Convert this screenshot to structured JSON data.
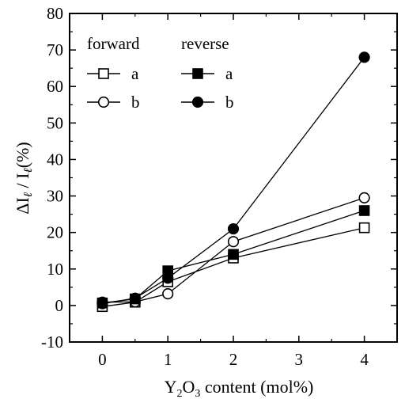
{
  "chart_data": {
    "type": "line",
    "xlabel": "Y2O3 content (mol%)",
    "ylabel": "ΔIℓ / Iℓ(%)",
    "xlim": [
      -0.5,
      4.5
    ],
    "ylim": [
      -10,
      80
    ],
    "x_ticks": [
      "0",
      "1",
      "2",
      "3",
      "4"
    ],
    "y_ticks": [
      "-10",
      "0",
      "10",
      "20",
      "30",
      "40",
      "50",
      "60",
      "70",
      "80"
    ],
    "legend": {
      "placement": "top-left",
      "group_headers": [
        "forward",
        "reverse"
      ]
    },
    "x": [
      0,
      0.5,
      1,
      2,
      4
    ],
    "series": [
      {
        "name": "a",
        "group": "forward",
        "marker": "square-open",
        "values": [
          -0.3,
          0.9,
          6.5,
          13.0,
          21.3
        ]
      },
      {
        "name": "b",
        "group": "forward",
        "marker": "circle-open",
        "values": [
          0.9,
          1.0,
          3.2,
          17.5,
          29.5
        ]
      },
      {
        "name": "a",
        "group": "reverse",
        "marker": "square-filled",
        "values": [
          0.7,
          1.8,
          9.5,
          14.0,
          26.0
        ]
      },
      {
        "name": "b",
        "group": "reverse",
        "marker": "circle-filled",
        "values": [
          0.5,
          2.0,
          7.5,
          21.0,
          68.0
        ]
      }
    ]
  }
}
